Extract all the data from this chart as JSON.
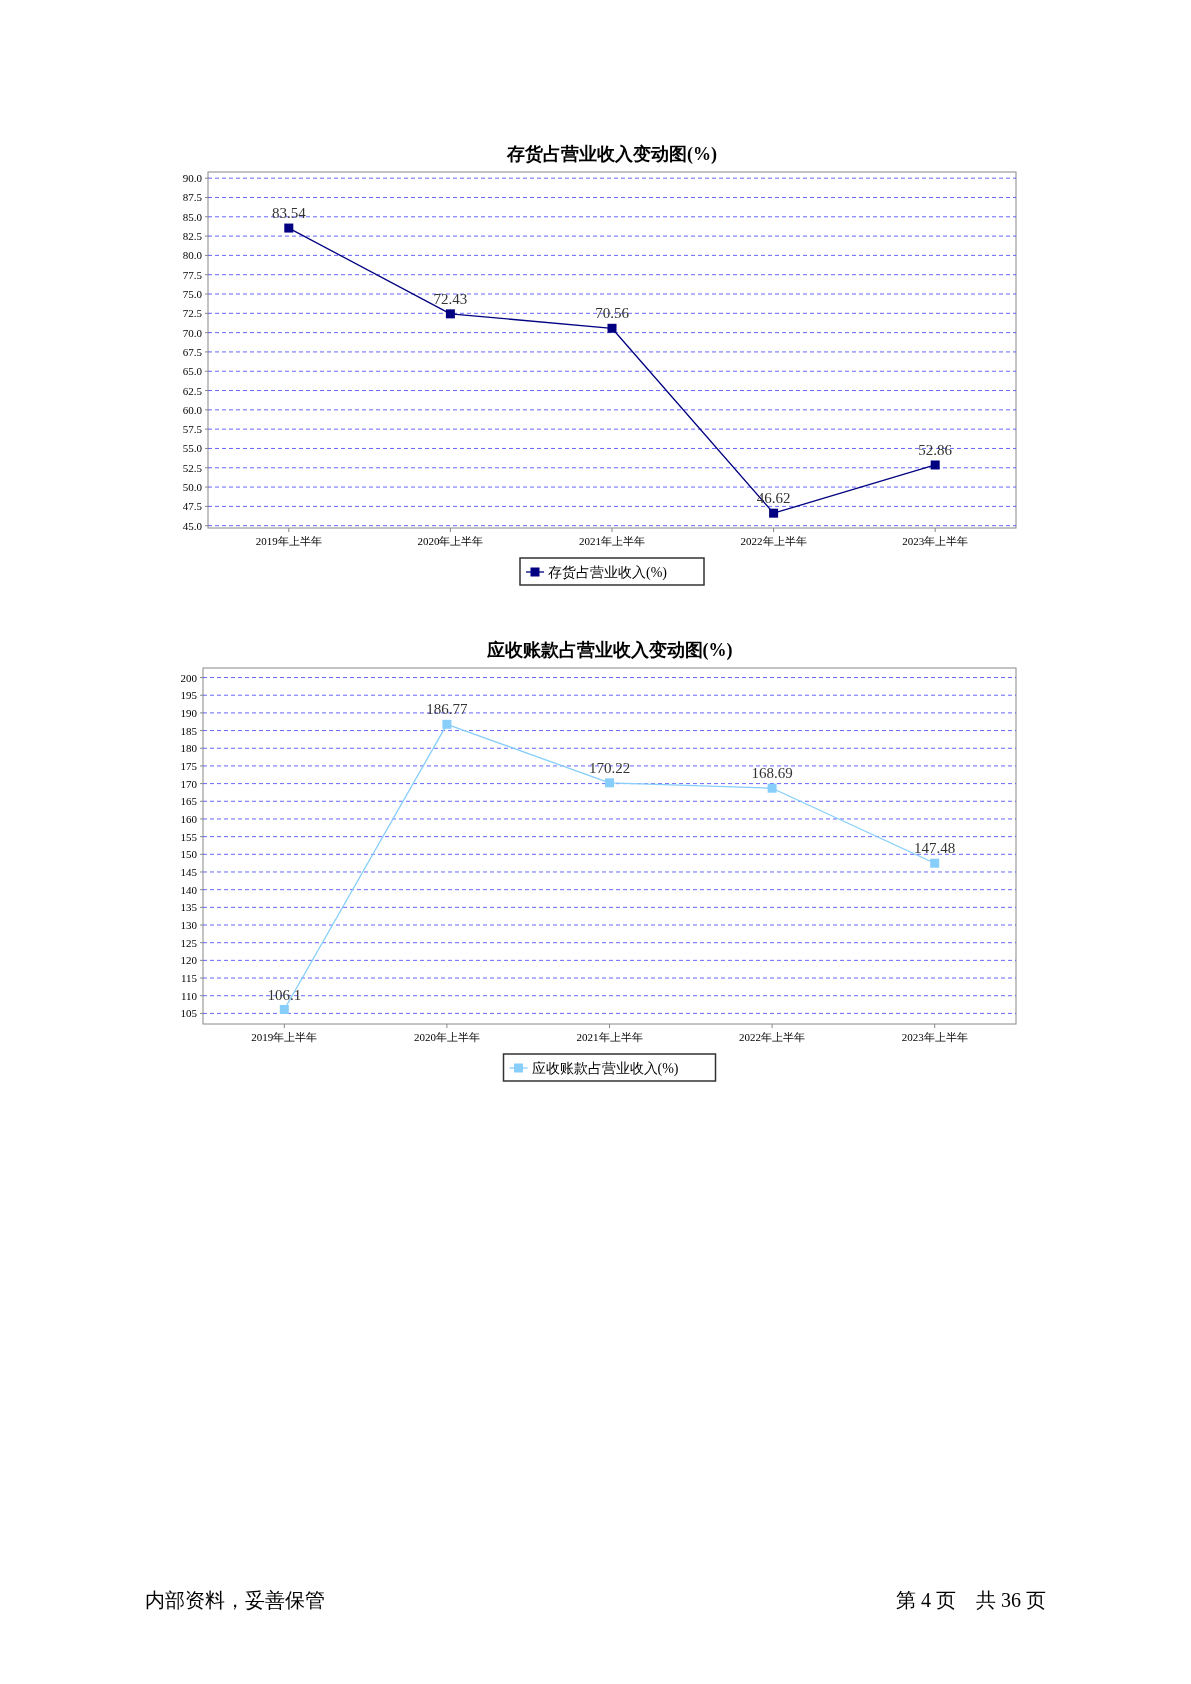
{
  "chart_data": [
    {
      "type": "line",
      "title": "存货占营业收入变动图(%)",
      "categories": [
        "2019年上半年",
        "2020年上半年",
        "2021年上半年",
        "2022年上半年",
        "2023年上半年"
      ],
      "series": [
        {
          "name": "存货占营业收入(%)",
          "color": "#000080",
          "values": [
            83.54,
            72.43,
            70.56,
            46.62,
            52.86
          ]
        }
      ],
      "ylim": [
        44.7,
        90.8
      ],
      "yticks": [
        {
          "value": 45,
          "label": "45.0"
        },
        {
          "value": 47.5,
          "label": "47.5"
        },
        {
          "value": 50,
          "label": "50.0"
        },
        {
          "value": 52.5,
          "label": "52.5"
        },
        {
          "value": 55,
          "label": "55.0"
        },
        {
          "value": 57.5,
          "label": "57.5"
        },
        {
          "value": 60,
          "label": "60.0"
        },
        {
          "value": 62.5,
          "label": "62.5"
        },
        {
          "value": 65,
          "label": "65.0"
        },
        {
          "value": 67.5,
          "label": "67.5"
        },
        {
          "value": 70,
          "label": "70.0"
        },
        {
          "value": 72.5,
          "label": "72.5"
        },
        {
          "value": 75,
          "label": "75.0"
        },
        {
          "value": 77.5,
          "label": "77.5"
        },
        {
          "value": 80,
          "label": "80.0"
        },
        {
          "value": 82.5,
          "label": "82.5"
        },
        {
          "value": 85,
          "label": "85.0"
        },
        {
          "value": 87.5,
          "label": "87.5"
        },
        {
          "value": 90,
          "label": "90.0"
        }
      ],
      "grid": "y",
      "legend": "bottom",
      "marker": "square",
      "line_style": "solid",
      "data_labels": true
    },
    {
      "type": "line",
      "title": "应收账款占营业收入变动图(%)",
      "categories": [
        "2019年上半年",
        "2020年上半年",
        "2021年上半年",
        "2022年上半年",
        "2023年上半年"
      ],
      "series": [
        {
          "name": "应收账款占营业收入(%)",
          "color": "#87cefa",
          "values": [
            106.1,
            186.77,
            170.22,
            168.69,
            147.48
          ]
        }
      ],
      "ylim": [
        102,
        202.7
      ],
      "yticks": [
        105,
        110,
        115,
        120,
        125,
        130,
        135,
        140,
        145,
        150,
        155,
        160,
        165,
        170,
        175,
        180,
        185,
        190,
        195,
        200
      ],
      "grid": "y",
      "legend": "bottom",
      "marker": "square",
      "line_style": "solid",
      "data_labels": true,
      "annotations": [
        "内部资料，妥善保管",
        "第 4 页　共 36 页"
      ]
    }
  ]
}
